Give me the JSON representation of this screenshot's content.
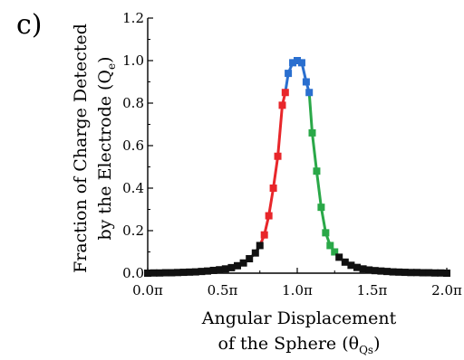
{
  "panel_label": "c)",
  "top_fragment": "(c)",
  "chart_data": {
    "type": "line",
    "xlabel_line1": "Angular Displacement",
    "xlabel_line2_prefix": "of the Sphere (θ",
    "xlabel_line2_sub": "Qs",
    "xlabel_line2_suffix": ")",
    "ylabel_line1": "Fraction of Charge Detected",
    "ylabel_line2_prefix": "by the Electrode (Q",
    "ylabel_line2_sub": "e",
    "ylabel_line2_suffix": ")",
    "xlim": [
      0,
      2
    ],
    "ylim": [
      0,
      1.2
    ],
    "x_ticks": [
      0,
      0.5,
      1.0,
      1.5,
      2.0
    ],
    "x_tick_labels": [
      "0.0π",
      "0.5π",
      "1.0π",
      "1.5π",
      "2.0π"
    ],
    "y_ticks": [
      0.0,
      0.2,
      0.4,
      0.6,
      0.8,
      1.0,
      1.2
    ],
    "y_tick_labels": [
      "0.0",
      "0.2",
      "0.4",
      "0.6",
      "0.8",
      "1.0",
      "1.2"
    ],
    "grid": false,
    "colors": {
      "black": "#111111",
      "red": "#e8262a",
      "blue": "#2a6fcf",
      "green": "#2aa848"
    },
    "series": [
      {
        "color": "black",
        "points": [
          [
            0.0,
            0.0
          ],
          [
            0.04,
            0.001
          ],
          [
            0.08,
            0.001
          ],
          [
            0.12,
            0.002
          ],
          [
            0.16,
            0.002
          ],
          [
            0.2,
            0.003
          ],
          [
            0.24,
            0.004
          ],
          [
            0.28,
            0.005
          ],
          [
            0.32,
            0.006
          ],
          [
            0.36,
            0.008
          ],
          [
            0.4,
            0.01
          ],
          [
            0.44,
            0.013
          ],
          [
            0.48,
            0.016
          ],
          [
            0.52,
            0.02
          ],
          [
            0.56,
            0.026
          ],
          [
            0.6,
            0.035
          ],
          [
            0.64,
            0.048
          ],
          [
            0.68,
            0.068
          ],
          [
            0.72,
            0.095
          ],
          [
            0.75,
            0.13
          ]
        ]
      },
      {
        "color": "red",
        "points": [
          [
            0.75,
            0.13
          ],
          [
            0.78,
            0.18
          ],
          [
            0.81,
            0.27
          ],
          [
            0.84,
            0.4
          ],
          [
            0.87,
            0.55
          ],
          [
            0.9,
            0.79
          ],
          [
            0.92,
            0.85
          ]
        ]
      },
      {
        "color": "blue",
        "points": [
          [
            0.92,
            0.85
          ],
          [
            0.94,
            0.94
          ],
          [
            0.97,
            0.99
          ],
          [
            1.0,
            1.0
          ],
          [
            1.03,
            0.99
          ],
          [
            1.06,
            0.9
          ],
          [
            1.08,
            0.85
          ]
        ]
      },
      {
        "color": "green",
        "points": [
          [
            1.08,
            0.85
          ],
          [
            1.1,
            0.66
          ],
          [
            1.13,
            0.48
          ],
          [
            1.16,
            0.31
          ],
          [
            1.19,
            0.19
          ],
          [
            1.22,
            0.13
          ],
          [
            1.25,
            0.1
          ]
        ]
      },
      {
        "color": "black",
        "points": [
          [
            1.25,
            0.1
          ],
          [
            1.28,
            0.075
          ],
          [
            1.32,
            0.052
          ],
          [
            1.36,
            0.037
          ],
          [
            1.4,
            0.027
          ],
          [
            1.44,
            0.02
          ],
          [
            1.48,
            0.015
          ],
          [
            1.52,
            0.012
          ],
          [
            1.56,
            0.01
          ],
          [
            1.6,
            0.008
          ],
          [
            1.64,
            0.006
          ],
          [
            1.68,
            0.005
          ],
          [
            1.72,
            0.004
          ],
          [
            1.76,
            0.003
          ],
          [
            1.8,
            0.003
          ],
          [
            1.84,
            0.002
          ],
          [
            1.88,
            0.002
          ],
          [
            1.92,
            0.001
          ],
          [
            1.96,
            0.001
          ],
          [
            2.0,
            0.0
          ]
        ]
      }
    ]
  }
}
